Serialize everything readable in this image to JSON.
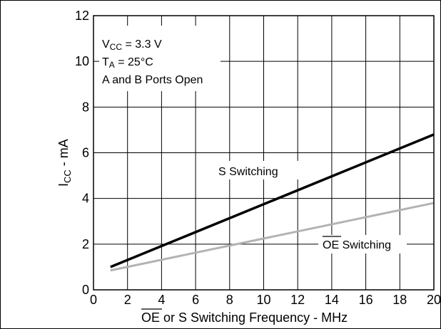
{
  "chart_data": {
    "type": "line",
    "xlabel_parts": {
      "over": "OE",
      "rest": " or S Switching Frequency - MHz"
    },
    "ylabel_parts": {
      "main": "I",
      "sub": "CC",
      "rest": " - mA"
    },
    "xlim": [
      0,
      20
    ],
    "ylim": [
      0,
      12
    ],
    "xticks": [
      0,
      2,
      4,
      6,
      8,
      10,
      12,
      14,
      16,
      18,
      20
    ],
    "yticks": [
      0,
      2,
      4,
      6,
      8,
      10,
      12
    ],
    "grid": true,
    "conditions": {
      "vcc": {
        "main": "V",
        "sub": "CC",
        "rest": " = 3.3 V"
      },
      "ta": {
        "main": "T",
        "sub": "A",
        "rest": " = 25°C"
      },
      "ports": "A and B Ports Open"
    },
    "series": [
      {
        "name": "S Switching",
        "color": "#000000",
        "x": [
          1,
          20
        ],
        "y": [
          1.0,
          6.8
        ]
      },
      {
        "name_parts": {
          "over": "OE",
          "rest": " Switching"
        },
        "color": "#b3b3b3",
        "x": [
          1,
          20
        ],
        "y": [
          0.85,
          3.8
        ]
      }
    ]
  }
}
